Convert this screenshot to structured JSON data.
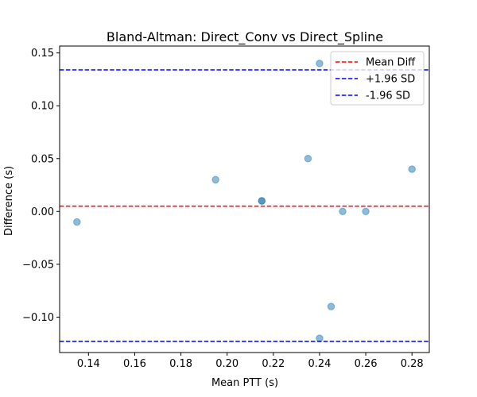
{
  "chart_data": {
    "type": "scatter",
    "title": "Bland-Altman: Direct_Conv vs Direct_Spline",
    "xlabel": "Mean PTT (s)",
    "ylabel": "Difference (s)",
    "xlim": [
      0.1275,
      0.2875
    ],
    "ylim": [
      -0.1335,
      0.1565
    ],
    "x_ticks": [
      0.14,
      0.16,
      0.18,
      0.2,
      0.22,
      0.24,
      0.26,
      0.28
    ],
    "x_tick_labels": [
      "0.14",
      "0.16",
      "0.18",
      "0.20",
      "0.22",
      "0.24",
      "0.26",
      "0.28"
    ],
    "y_ticks": [
      -0.1,
      -0.05,
      0.0,
      0.05,
      0.1,
      0.15
    ],
    "y_tick_labels": [
      "−0.10",
      "−0.05",
      "0.00",
      "0.05",
      "0.10",
      "0.15"
    ],
    "grid": false,
    "legend_position": "upper-right",
    "points": {
      "color": "#1f77b4",
      "alpha": 0.5,
      "x": [
        0.135,
        0.195,
        0.215,
        0.215,
        0.235,
        0.24,
        0.245,
        0.24,
        0.25,
        0.26,
        0.28
      ],
      "y": [
        -0.01,
        0.03,
        0.01,
        0.01,
        0.05,
        0.14,
        -0.09,
        -0.12,
        0.0,
        0.0,
        0.04
      ]
    },
    "reference_lines": [
      {
        "name": "Mean Diff",
        "y": 0.005,
        "color": "#ff0000"
      },
      {
        "name": "+1.96 SD",
        "y": 0.134,
        "color": "#0000ff"
      },
      {
        "name": "-1.96 SD",
        "y": -0.123,
        "color": "#0000ff"
      }
    ]
  }
}
